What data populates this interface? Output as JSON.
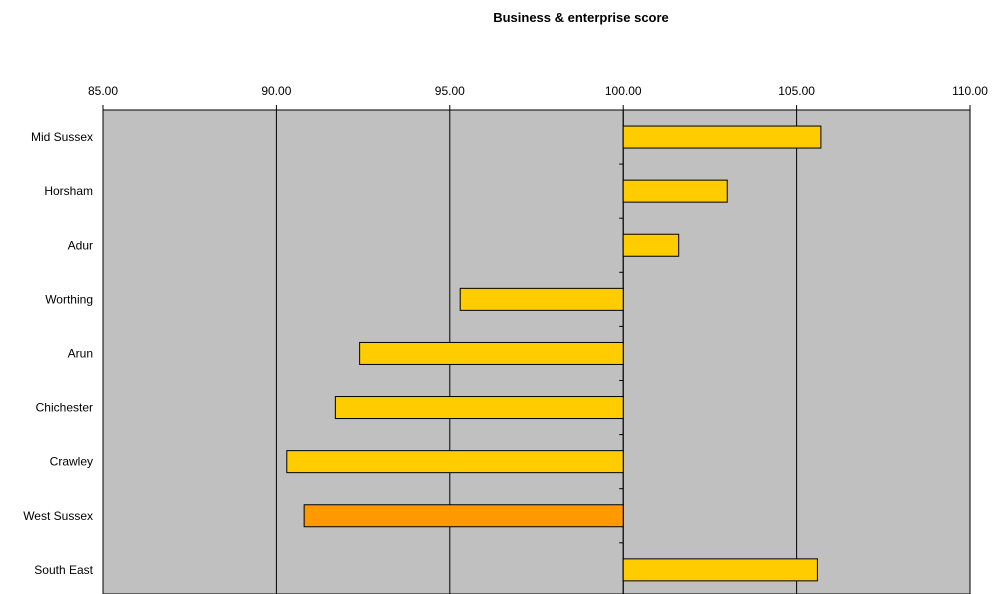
{
  "chart_data": {
    "type": "bar",
    "orientation": "horizontal",
    "title": "Business & enterprise score",
    "xlabel": "",
    "ylabel": "",
    "xlim": [
      85,
      110
    ],
    "x_ticks": [
      "85.00",
      "90.00",
      "95.00",
      "100.00",
      "105.00",
      "110.00"
    ],
    "x_tick_values": [
      85,
      90,
      95,
      100,
      105,
      110
    ],
    "baseline": 100,
    "categories": [
      "Mid Sussex",
      "Horsham",
      "Adur",
      "Worthing",
      "Arun",
      "Chichester",
      "Crawley",
      "West Sussex",
      "South East"
    ],
    "values": [
      105.7,
      103.0,
      101.6,
      95.3,
      92.4,
      91.7,
      90.3,
      90.8,
      105.6
    ],
    "bar_colors": [
      "#FFCC00",
      "#FFCC00",
      "#FFCC00",
      "#FFCC00",
      "#FFCC00",
      "#FFCC00",
      "#FFCC00",
      "#FF9900",
      "#FFCC00"
    ],
    "plot_background": "#C0C0C0",
    "gridlines": true,
    "legend": "none"
  }
}
